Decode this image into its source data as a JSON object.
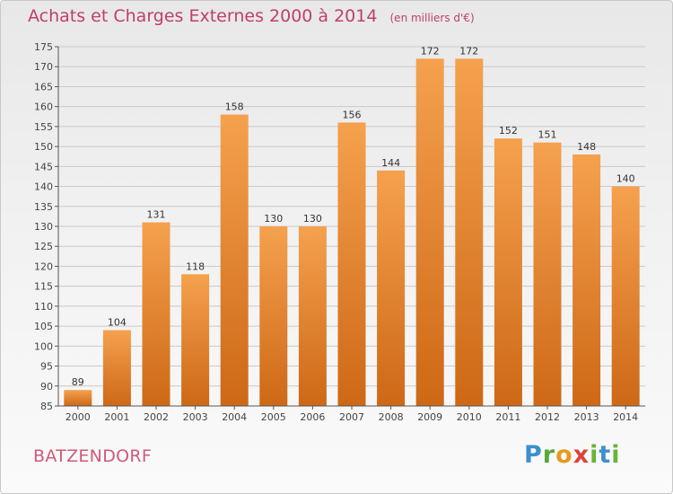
{
  "title": "Achats et Charges Externes 2000 à 2014",
  "unit": "(en milliers d'€)",
  "commune": "BATZENDORF",
  "logo": "Proxiti",
  "colors": {
    "bar_top": "#f5a14e",
    "bar_bottom": "#cd6816",
    "title": "#bf3e6c",
    "grid": "#c9c9c9",
    "axis": "#555555"
  },
  "chart_data": {
    "type": "bar",
    "categories": [
      "2000",
      "2001",
      "2002",
      "2003",
      "2004",
      "2005",
      "2006",
      "2007",
      "2008",
      "2009",
      "2010",
      "2011",
      "2012",
      "2013",
      "2014"
    ],
    "values": [
      89,
      104,
      131,
      118,
      158,
      130,
      130,
      156,
      144,
      172,
      172,
      152,
      151,
      148,
      140
    ],
    "ylim": [
      85,
      175
    ],
    "yticks": [
      85,
      90,
      95,
      100,
      105,
      110,
      115,
      120,
      125,
      130,
      135,
      140,
      145,
      150,
      155,
      160,
      165,
      170,
      175
    ],
    "grid": true,
    "data_labels": true
  }
}
